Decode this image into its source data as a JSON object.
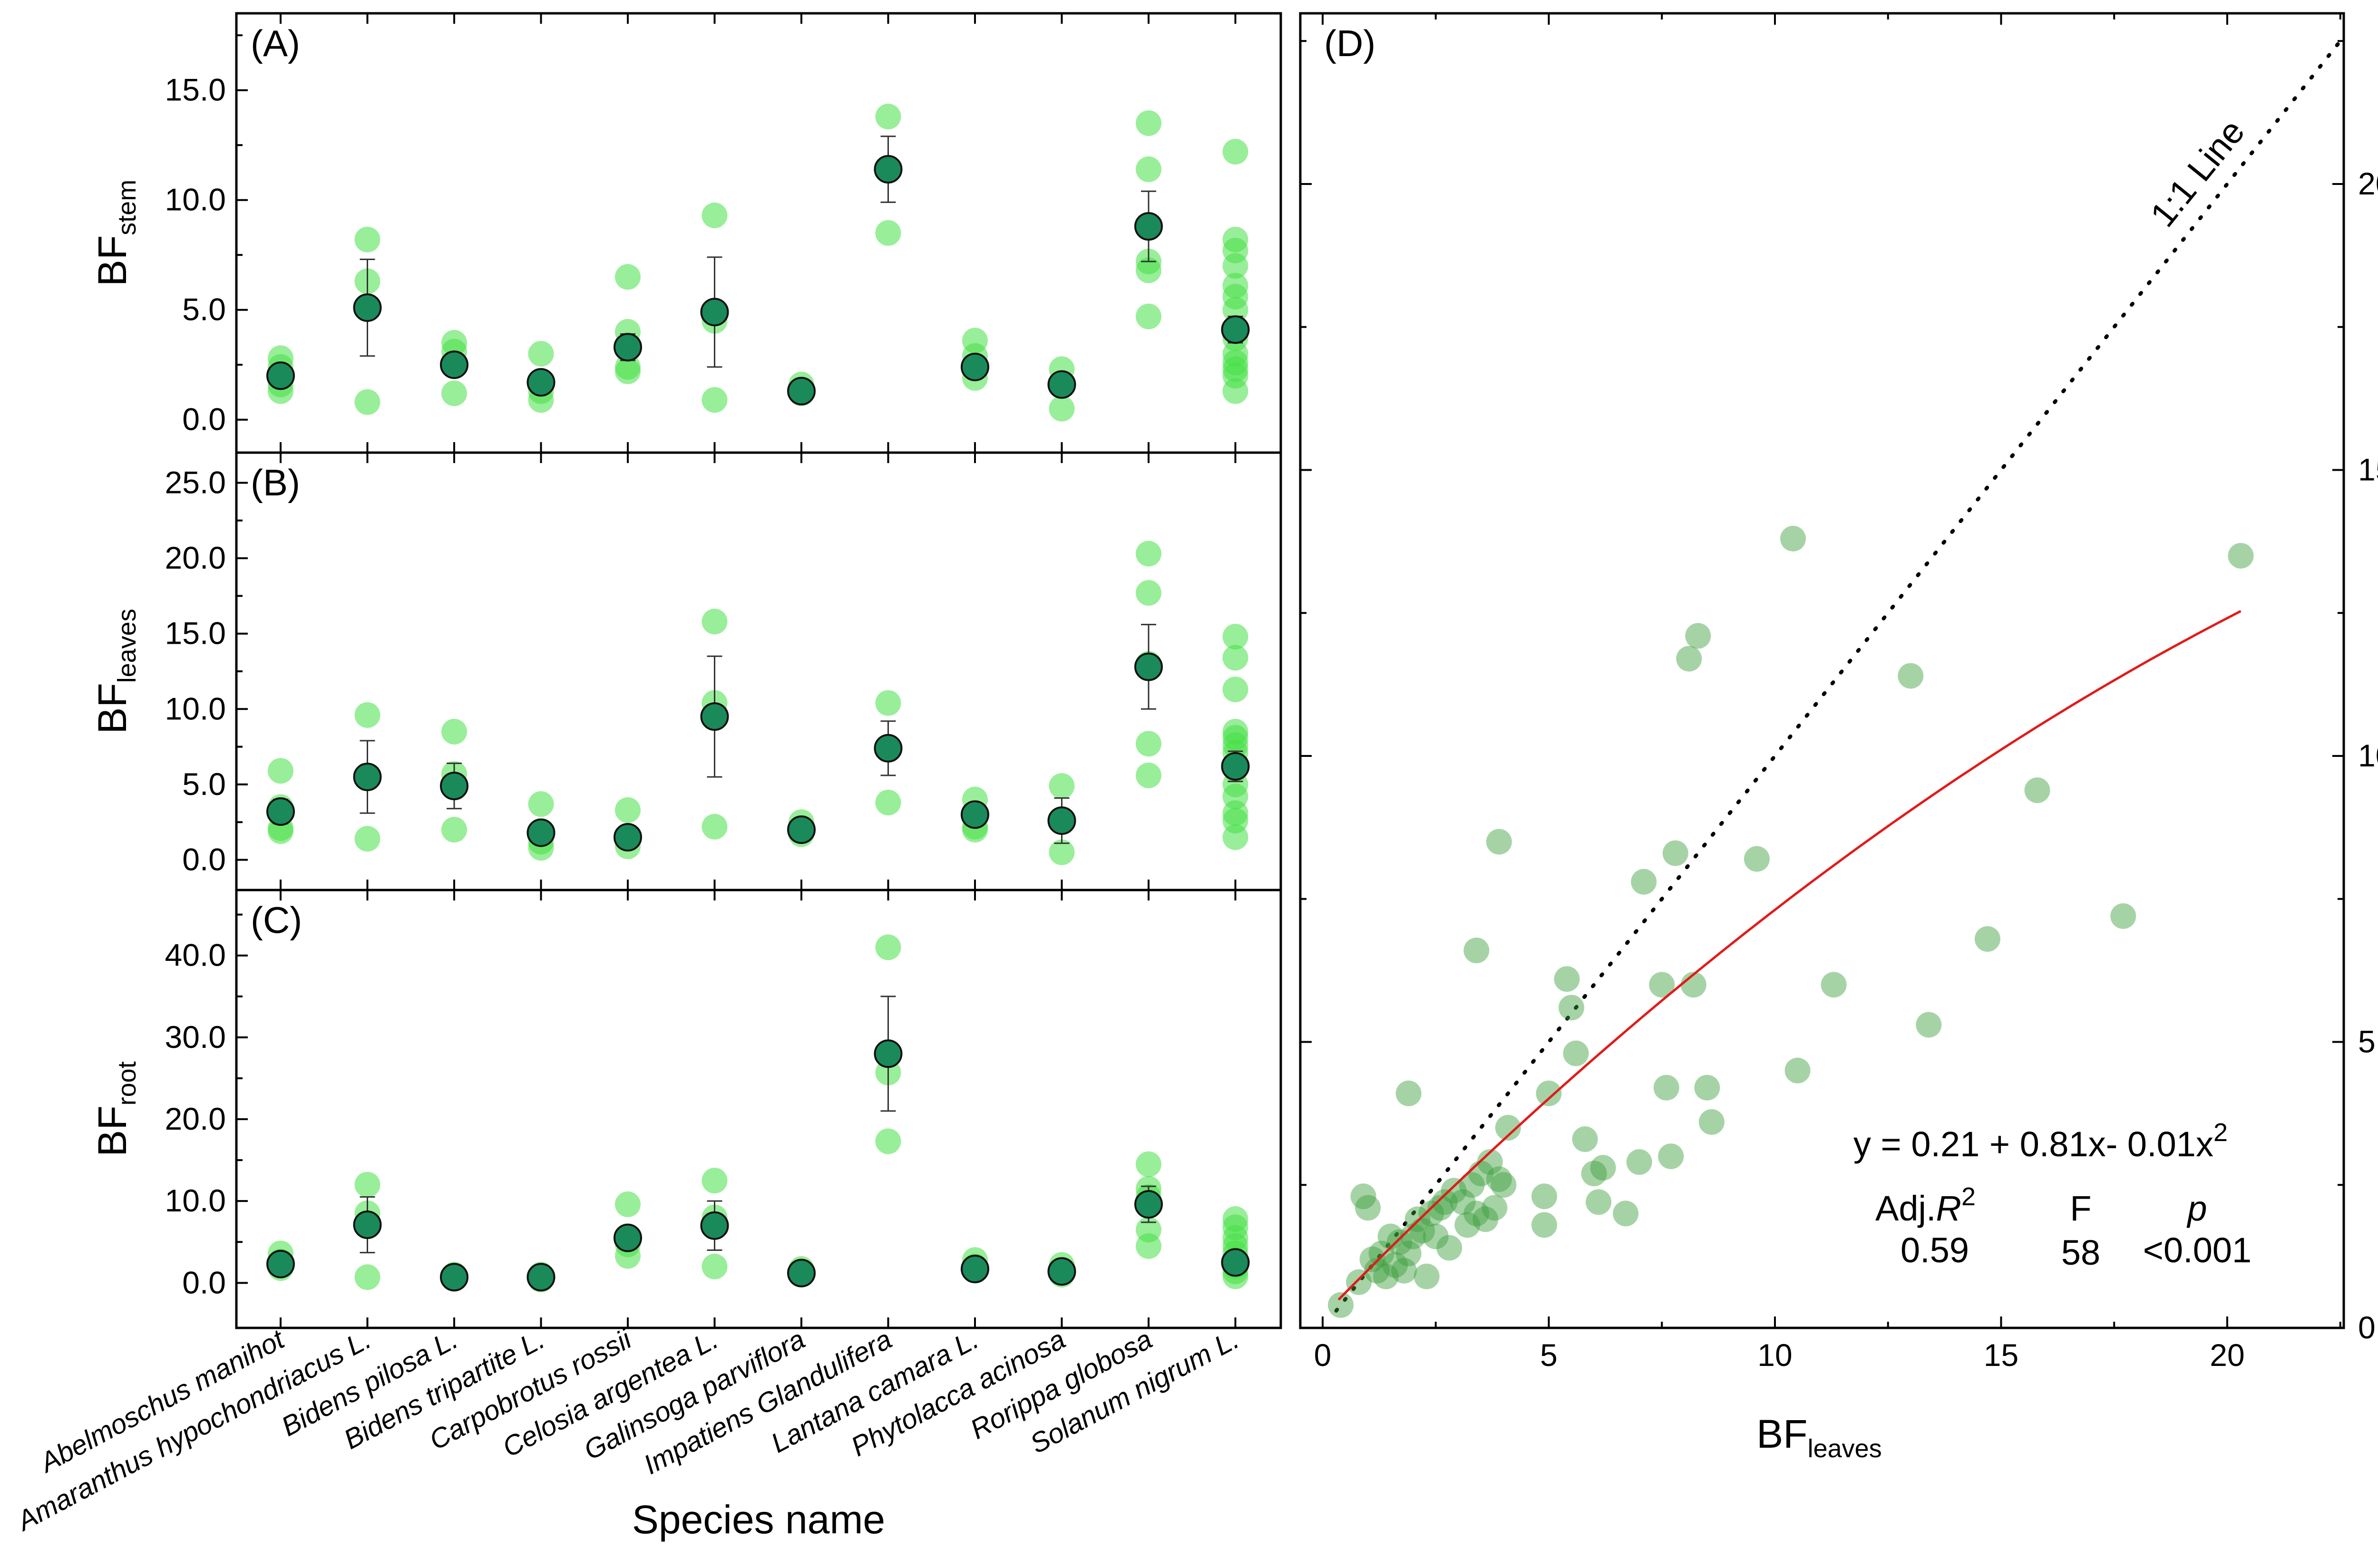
{
  "colors": {
    "raw": "#46e046",
    "mean_fill": "#1a8a5a",
    "scatter": "#3a9e3a",
    "fit": "#e11b1b",
    "axis": "#000000"
  },
  "labels": {
    "bf": "BF",
    "stem": "stem",
    "leaves": "leaves",
    "root": "root",
    "species_axis": "Species name"
  },
  "chart_data": [
    {
      "id": "A",
      "type": "scatter",
      "title": "(A)",
      "ylabel": "BF",
      "ylabel_sub": "stem",
      "ylim": [
        -1.5,
        18.5
      ],
      "yticks": [
        0,
        5,
        10,
        15
      ],
      "ytick_labels": [
        "0.0",
        "5.0",
        "10.0",
        "15.0"
      ],
      "categories": [
        "Abelmoschus manihot",
        "Amaranthus hypochondriacus L.",
        "Bidens pilosa L.",
        "Bidens tripartite L.",
        "Carpobrotus rossii",
        "Celosia argentea L.",
        "Galinsoga parviflora",
        "Impatiens Glandulifera",
        "Lantana camara L.",
        "Phytolacca acinosa",
        "Rorippa globosa",
        "Solanum nigrum L."
      ],
      "means": [
        2.0,
        5.1,
        2.5,
        1.7,
        3.3,
        4.9,
        1.3,
        11.4,
        2.4,
        1.6,
        8.8,
        4.1
      ],
      "errors": [
        0.3,
        2.2,
        0.5,
        0.3,
        0.6,
        2.5,
        0.2,
        1.5,
        0.3,
        0.3,
        1.6,
        0.6
      ],
      "raw": [
        [
          2.8,
          2.4,
          1.6,
          1.3
        ],
        [
          8.2,
          6.3,
          0.8
        ],
        [
          3.5,
          3.1,
          1.2
        ],
        [
          3.0,
          1.3,
          0.9
        ],
        [
          6.5,
          4.0,
          2.4,
          2.2
        ],
        [
          9.3,
          4.5,
          0.9
        ],
        [
          1.6,
          1.2
        ],
        [
          13.8,
          8.5
        ],
        [
          3.6,
          2.9,
          1.9
        ],
        [
          2.3,
          0.5
        ],
        [
          13.5,
          11.4,
          7.2,
          6.8,
          4.7
        ],
        [
          12.2,
          8.2,
          7.7,
          7.0,
          6.1,
          5.6,
          5.0,
          3.7,
          3.0,
          2.6,
          2.3,
          2.0,
          1.3
        ]
      ]
    },
    {
      "id": "B",
      "type": "scatter",
      "title": "(B)",
      "ylabel": "BF",
      "ylabel_sub": "leaves",
      "ylim": [
        -2,
        27
      ],
      "yticks": [
        0,
        5,
        10,
        15,
        20,
        25
      ],
      "ytick_labels": [
        "0.0",
        "5.0",
        "10.0",
        "15.0",
        "20.0",
        "25.0"
      ],
      "means": [
        3.2,
        5.5,
        4.9,
        1.8,
        1.5,
        9.5,
        2.0,
        7.4,
        3.0,
        2.6,
        12.8,
        6.2
      ],
      "errors": [
        0.8,
        2.4,
        1.5,
        0.5,
        0.6,
        4.0,
        0.4,
        1.8,
        0.5,
        1.5,
        2.8,
        1.0
      ],
      "raw": [
        [
          5.9,
          3.5,
          2.1,
          1.9
        ],
        [
          9.6,
          5.5,
          1.4
        ],
        [
          8.5,
          5.7,
          2.0
        ],
        [
          3.7,
          1.2,
          0.8
        ],
        [
          3.3,
          1.4,
          0.9
        ],
        [
          15.8,
          10.4,
          2.2
        ],
        [
          2.5,
          1.7
        ],
        [
          10.4,
          3.8
        ],
        [
          4.0,
          2.2,
          2.0
        ],
        [
          4.9,
          0.5
        ],
        [
          20.3,
          17.7,
          13.0,
          7.7,
          5.6
        ],
        [
          14.8,
          13.4,
          11.3,
          8.5,
          8.1,
          7.6,
          7.1,
          6.0,
          5.0,
          4.2,
          3.1,
          2.6,
          1.5
        ]
      ]
    },
    {
      "id": "C",
      "type": "scatter",
      "title": "(C)",
      "ylabel": "BF",
      "ylabel_sub": "root",
      "ylim": [
        -5.5,
        48
      ],
      "yticks": [
        0,
        10,
        20,
        30,
        40
      ],
      "ytick_labels": [
        "0.0",
        "10.0",
        "20.0",
        "30.0",
        "40.0"
      ],
      "means": [
        2.3,
        7.1,
        0.7,
        0.7,
        5.5,
        7.0,
        1.2,
        28.0,
        1.7,
        1.4,
        9.6,
        2.5
      ],
      "errors": [
        1.0,
        3.4,
        0.3,
        0.3,
        1.2,
        3.0,
        0.4,
        7.0,
        0.5,
        0.7,
        2.2,
        1.2
      ],
      "raw": [
        [
          3.6,
          2.6,
          1.8
        ],
        [
          12.0,
          8.5,
          0.7
        ],
        [
          1.0,
          0.5
        ],
        [
          1.0,
          0.4
        ],
        [
          9.6,
          4.7,
          3.3
        ],
        [
          12.5,
          8.0,
          2.0
        ],
        [
          1.7,
          1.0
        ],
        [
          41.0,
          25.7,
          17.3
        ],
        [
          2.8,
          2.0,
          1.5
        ],
        [
          2.2,
          1.0
        ],
        [
          14.5,
          11.5,
          10.5,
          6.5,
          4.5
        ],
        [
          7.8,
          6.8,
          5.5,
          4.5,
          3.6,
          2.8,
          2.0,
          1.4,
          0.8
        ]
      ]
    },
    {
      "id": "D",
      "type": "scatter",
      "title": "(D)",
      "xlabel": "BF",
      "xlabel_sub": "leaves",
      "ylabel": "BF",
      "ylabel_sub": "stem",
      "xlim": [
        0,
        23
      ],
      "ylim": [
        0,
        23
      ],
      "xticks": [
        0,
        5,
        10,
        15,
        20
      ],
      "yticks": [
        0,
        5,
        10,
        15,
        20
      ],
      "reference_line": {
        "label": "1:1 Line",
        "slope": 1,
        "intercept": 0
      },
      "fit": {
        "intercept": 0.21,
        "b1": 0.81,
        "b2": -0.01,
        "x_range": [
          0.35,
          20.3
        ]
      },
      "equation": "y = 0.21 + 0.81x- 0.01x",
      "equation_sup": "2",
      "stats": {
        "adj_r2_label": "Adj.",
        "adj_r2_symbol": "R",
        "adj_r2_sup": "2",
        "f_label": "F",
        "p_label": "p",
        "adj_r2": "0.59",
        "f": "58",
        "p": "<0.001"
      },
      "points": [
        [
          0.4,
          0.4
        ],
        [
          0.8,
          0.8
        ],
        [
          0.9,
          2.3
        ],
        [
          1.0,
          2.1
        ],
        [
          1.1,
          1.2
        ],
        [
          1.2,
          1.0
        ],
        [
          1.3,
          1.3
        ],
        [
          1.4,
          0.9
        ],
        [
          1.5,
          1.6
        ],
        [
          1.6,
          1.1
        ],
        [
          1.7,
          1.5
        ],
        [
          1.8,
          1.0
        ],
        [
          1.9,
          4.1
        ],
        [
          1.9,
          1.3
        ],
        [
          2.0,
          1.6
        ],
        [
          2.1,
          1.9
        ],
        [
          2.2,
          1.7
        ],
        [
          2.3,
          0.9
        ],
        [
          2.4,
          2.0
        ],
        [
          2.5,
          1.6
        ],
        [
          2.6,
          2.1
        ],
        [
          2.7,
          2.2
        ],
        [
          2.8,
          1.4
        ],
        [
          2.9,
          2.4
        ],
        [
          3.1,
          2.2
        ],
        [
          3.2,
          1.8
        ],
        [
          3.3,
          2.5
        ],
        [
          3.4,
          2.0
        ],
        [
          3.4,
          6.6
        ],
        [
          3.5,
          2.7
        ],
        [
          3.6,
          1.9
        ],
        [
          3.7,
          2.9
        ],
        [
          3.8,
          2.1
        ],
        [
          3.9,
          2.6
        ],
        [
          3.9,
          8.5
        ],
        [
          4.0,
          2.5
        ],
        [
          4.1,
          3.5
        ],
        [
          4.9,
          2.3
        ],
        [
          4.9,
          1.8
        ],
        [
          5.0,
          4.1
        ],
        [
          5.4,
          6.1
        ],
        [
          5.5,
          5.6
        ],
        [
          5.6,
          4.8
        ],
        [
          5.8,
          3.3
        ],
        [
          6.0,
          2.7
        ],
        [
          6.1,
          2.2
        ],
        [
          6.2,
          2.8
        ],
        [
          6.7,
          2.0
        ],
        [
          7.0,
          2.9
        ],
        [
          7.1,
          7.8
        ],
        [
          7.5,
          6.0
        ],
        [
          7.6,
          4.2
        ],
        [
          7.7,
          3.0
        ],
        [
          7.8,
          8.3
        ],
        [
          8.1,
          11.7
        ],
        [
          8.2,
          6.0
        ],
        [
          8.3,
          12.1
        ],
        [
          8.5,
          4.2
        ],
        [
          8.6,
          3.6
        ],
        [
          9.6,
          8.2
        ],
        [
          10.4,
          13.8
        ],
        [
          10.5,
          4.5
        ],
        [
          11.3,
          6.0
        ],
        [
          13.0,
          11.4
        ],
        [
          13.4,
          5.3
        ],
        [
          14.7,
          6.8
        ],
        [
          15.8,
          9.4
        ],
        [
          17.7,
          7.2
        ],
        [
          20.3,
          13.5
        ]
      ]
    }
  ]
}
